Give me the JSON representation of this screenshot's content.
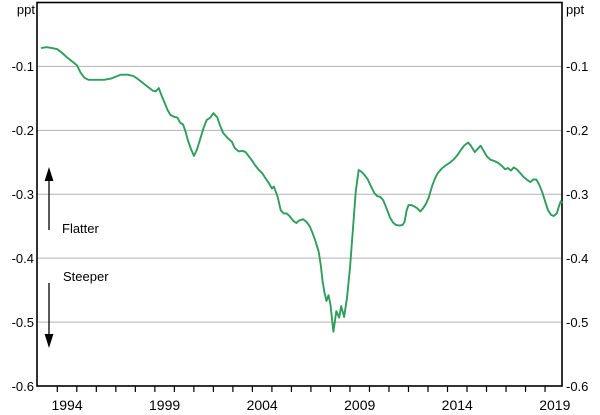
{
  "labels": {
    "ppt_left": "ppt",
    "ppt_right": "ppt",
    "flatter": "Flatter",
    "steeper": "Steeper"
  },
  "chart_data": {
    "type": "line",
    "unit": "ppt",
    "grid": "horizontal",
    "legend": "none",
    "y_axis": {
      "side": "both",
      "min": -0.6,
      "max": 0.0,
      "tick_values": [
        -0.1,
        -0.2,
        -0.3,
        -0.4,
        -0.5,
        -0.6
      ],
      "tick_labels": [
        "-0.1",
        "-0.2",
        "-0.3",
        "-0.4",
        "-0.5",
        "-0.6"
      ]
    },
    "x_axis": {
      "minor_tick_years_start": 1994,
      "minor_tick_years_end": 2019,
      "labeled_years": [
        1994,
        1999,
        2004,
        2009,
        2014,
        2019
      ],
      "label_values": [
        "1994",
        "1999",
        "2004",
        "2009",
        "2014",
        "2019"
      ]
    },
    "annotations": [
      {
        "text": "Flatter",
        "arrow": "up"
      },
      {
        "text": "Steeper",
        "arrow": "down"
      }
    ],
    "series": [
      {
        "id": "slope-line",
        "color": "#2e9e5a",
        "points": [
          [
            1993.2,
            -0.071
          ],
          [
            1993.45,
            -0.07
          ],
          [
            1993.7,
            -0.071
          ],
          [
            1994.0,
            -0.073
          ],
          [
            1994.25,
            -0.079
          ],
          [
            1994.5,
            -0.086
          ],
          [
            1994.75,
            -0.092
          ],
          [
            1995.0,
            -0.098
          ],
          [
            1995.2,
            -0.11
          ],
          [
            1995.4,
            -0.118
          ],
          [
            1995.6,
            -0.121
          ],
          [
            1996.0,
            -0.121
          ],
          [
            1996.4,
            -0.121
          ],
          [
            1996.75,
            -0.119
          ],
          [
            1997.0,
            -0.116
          ],
          [
            1997.25,
            -0.113
          ],
          [
            1997.6,
            -0.113
          ],
          [
            1997.9,
            -0.115
          ],
          [
            1998.1,
            -0.119
          ],
          [
            1998.35,
            -0.125
          ],
          [
            1998.6,
            -0.131
          ],
          [
            1998.9,
            -0.138
          ],
          [
            1999.05,
            -0.139
          ],
          [
            1999.2,
            -0.134
          ],
          [
            1999.35,
            -0.146
          ],
          [
            1999.5,
            -0.157
          ],
          [
            1999.65,
            -0.168
          ],
          [
            1999.8,
            -0.176
          ],
          [
            2000.0,
            -0.179
          ],
          [
            2000.15,
            -0.18
          ],
          [
            2000.3,
            -0.188
          ],
          [
            2000.45,
            -0.191
          ],
          [
            2000.55,
            -0.2
          ],
          [
            2000.7,
            -0.216
          ],
          [
            2000.85,
            -0.229
          ],
          [
            2001.0,
            -0.24
          ],
          [
            2001.15,
            -0.231
          ],
          [
            2001.3,
            -0.216
          ],
          [
            2001.5,
            -0.196
          ],
          [
            2001.65,
            -0.184
          ],
          [
            2001.85,
            -0.18
          ],
          [
            2002.0,
            -0.173
          ],
          [
            2002.2,
            -0.18
          ],
          [
            2002.35,
            -0.193
          ],
          [
            2002.5,
            -0.204
          ],
          [
            2002.7,
            -0.211
          ],
          [
            2002.95,
            -0.218
          ],
          [
            2003.1,
            -0.228
          ],
          [
            2003.3,
            -0.233
          ],
          [
            2003.5,
            -0.232
          ],
          [
            2003.65,
            -0.234
          ],
          [
            2003.8,
            -0.24
          ],
          [
            2004.0,
            -0.248
          ],
          [
            2004.15,
            -0.255
          ],
          [
            2004.3,
            -0.261
          ],
          [
            2004.5,
            -0.267
          ],
          [
            2004.65,
            -0.274
          ],
          [
            2004.85,
            -0.283
          ],
          [
            2005.0,
            -0.291
          ],
          [
            2005.1,
            -0.288
          ],
          [
            2005.3,
            -0.305
          ],
          [
            2005.45,
            -0.325
          ],
          [
            2005.6,
            -0.33
          ],
          [
            2005.75,
            -0.33
          ],
          [
            2005.9,
            -0.334
          ],
          [
            2006.1,
            -0.342
          ],
          [
            2006.25,
            -0.345
          ],
          [
            2006.4,
            -0.341
          ],
          [
            2006.6,
            -0.339
          ],
          [
            2006.8,
            -0.344
          ],
          [
            2006.95,
            -0.351
          ],
          [
            2007.1,
            -0.362
          ],
          [
            2007.25,
            -0.375
          ],
          [
            2007.4,
            -0.39
          ],
          [
            2007.5,
            -0.41
          ],
          [
            2007.6,
            -0.436
          ],
          [
            2007.7,
            -0.455
          ],
          [
            2007.8,
            -0.467
          ],
          [
            2007.9,
            -0.458
          ],
          [
            2008.0,
            -0.472
          ],
          [
            2008.15,
            -0.515
          ],
          [
            2008.3,
            -0.483
          ],
          [
            2008.45,
            -0.493
          ],
          [
            2008.55,
            -0.475
          ],
          [
            2008.7,
            -0.492
          ],
          [
            2008.85,
            -0.462
          ],
          [
            2009.0,
            -0.415
          ],
          [
            2009.15,
            -0.355
          ],
          [
            2009.3,
            -0.295
          ],
          [
            2009.45,
            -0.262
          ],
          [
            2009.6,
            -0.265
          ],
          [
            2009.75,
            -0.27
          ],
          [
            2009.9,
            -0.276
          ],
          [
            2010.1,
            -0.289
          ],
          [
            2010.25,
            -0.298
          ],
          [
            2010.4,
            -0.303
          ],
          [
            2010.55,
            -0.304
          ],
          [
            2010.7,
            -0.309
          ],
          [
            2010.85,
            -0.32
          ],
          [
            2011.05,
            -0.336
          ],
          [
            2011.2,
            -0.344
          ],
          [
            2011.35,
            -0.348
          ],
          [
            2011.55,
            -0.349
          ],
          [
            2011.7,
            -0.348
          ],
          [
            2011.8,
            -0.343
          ],
          [
            2011.9,
            -0.326
          ],
          [
            2012.0,
            -0.317
          ],
          [
            2012.15,
            -0.317
          ],
          [
            2012.3,
            -0.319
          ],
          [
            2012.45,
            -0.322
          ],
          [
            2012.6,
            -0.327
          ],
          [
            2012.75,
            -0.322
          ],
          [
            2012.9,
            -0.315
          ],
          [
            2013.05,
            -0.304
          ],
          [
            2013.2,
            -0.288
          ],
          [
            2013.35,
            -0.276
          ],
          [
            2013.5,
            -0.267
          ],
          [
            2013.7,
            -0.26
          ],
          [
            2013.9,
            -0.255
          ],
          [
            2014.1,
            -0.251
          ],
          [
            2014.3,
            -0.246
          ],
          [
            2014.5,
            -0.239
          ],
          [
            2014.7,
            -0.23
          ],
          [
            2014.85,
            -0.224
          ],
          [
            2015.05,
            -0.219
          ],
          [
            2015.2,
            -0.224
          ],
          [
            2015.4,
            -0.234
          ],
          [
            2015.55,
            -0.229
          ],
          [
            2015.7,
            -0.224
          ],
          [
            2015.85,
            -0.232
          ],
          [
            2016.0,
            -0.24
          ],
          [
            2016.2,
            -0.246
          ],
          [
            2016.4,
            -0.248
          ],
          [
            2016.6,
            -0.251
          ],
          [
            2016.8,
            -0.256
          ],
          [
            2016.95,
            -0.261
          ],
          [
            2017.1,
            -0.259
          ],
          [
            2017.25,
            -0.263
          ],
          [
            2017.4,
            -0.258
          ],
          [
            2017.55,
            -0.261
          ],
          [
            2017.7,
            -0.266
          ],
          [
            2017.9,
            -0.273
          ],
          [
            2018.1,
            -0.278
          ],
          [
            2018.25,
            -0.281
          ],
          [
            2018.4,
            -0.277
          ],
          [
            2018.55,
            -0.277
          ],
          [
            2018.7,
            -0.285
          ],
          [
            2018.85,
            -0.296
          ],
          [
            2019.0,
            -0.311
          ],
          [
            2019.15,
            -0.325
          ],
          [
            2019.3,
            -0.332
          ],
          [
            2019.45,
            -0.334
          ],
          [
            2019.6,
            -0.33
          ],
          [
            2019.7,
            -0.32
          ],
          [
            2019.8,
            -0.311
          ],
          [
            2019.87,
            -0.313
          ]
        ]
      }
    ]
  }
}
